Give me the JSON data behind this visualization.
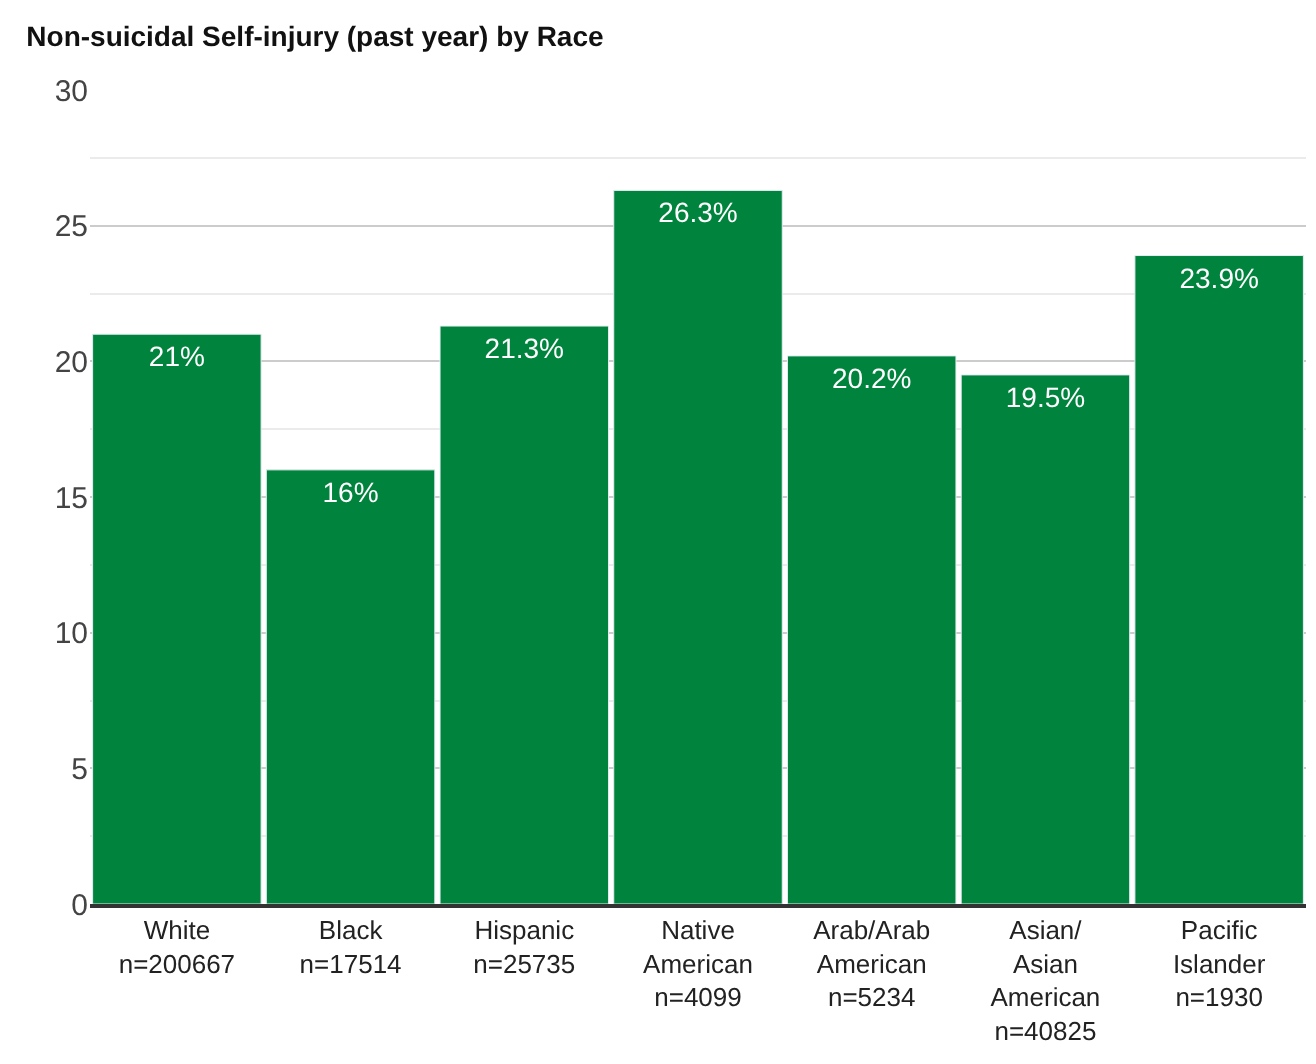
{
  "chart_data": {
    "type": "bar",
    "title": "Non-suicidal Self-injury (past year) by Race",
    "categories": [
      "White\nn=200667",
      "Black\nn=17514",
      "Hispanic\nn=25735",
      "Native\nAmerican\nn=4099",
      "Arab/Arab\nAmerican\nn=5234",
      "Asian/\nAsian\nAmerican\nn=40825",
      "Pacific\nIslander\nn=1930"
    ],
    "values": [
      21,
      16,
      21.3,
      26.3,
      20.2,
      19.5,
      23.9
    ],
    "value_labels": [
      "21%",
      "16%",
      "21.3%",
      "26.3%",
      "20.2%",
      "19.5%",
      "23.9%"
    ],
    "color": "#00843d",
    "ylim": [
      0,
      30
    ],
    "yticks": [
      0,
      {
        "value": 2.5,
        "label": null
      },
      5,
      {
        "value": 7.5,
        "label": null
      },
      10,
      {
        "value": 12.5,
        "label": null
      },
      15,
      {
        "value": 17.5,
        "label": null
      },
      20,
      {
        "value": 22.5,
        "label": null
      },
      25,
      {
        "value": 27.5,
        "label": null
      },
      30
    ],
    "grid": "y",
    "legend": false
  }
}
